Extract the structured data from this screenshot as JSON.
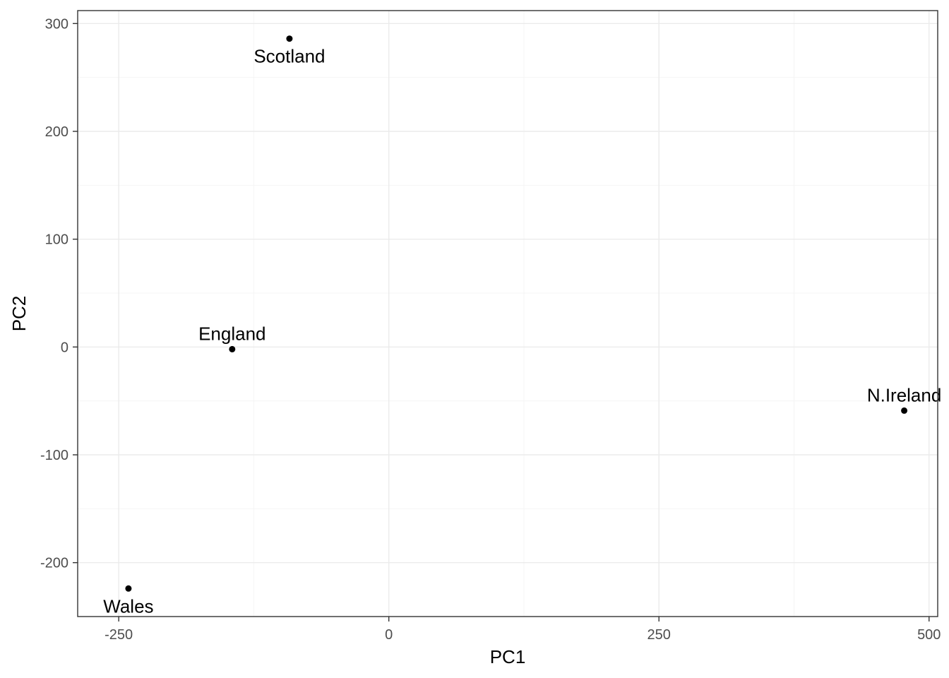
{
  "chart_data": {
    "type": "scatter",
    "title": "",
    "xlabel": "PC1",
    "ylabel": "PC2",
    "xlim": [
      -288,
      508
    ],
    "ylim": [
      -250,
      312
    ],
    "xticks": [
      -250,
      0,
      250,
      500
    ],
    "yticks": [
      -200,
      -100,
      0,
      100,
      200,
      300
    ],
    "xtick_labels": [
      "-250",
      "0",
      "250",
      "500"
    ],
    "ytick_labels": [
      "-200",
      "-100",
      "0",
      "100",
      "200",
      "300"
    ],
    "grid": true,
    "points": [
      {
        "label": "England",
        "x": -145,
        "y": -2,
        "label_position": "above"
      },
      {
        "label": "Wales",
        "x": -241,
        "y": -224,
        "label_position": "below"
      },
      {
        "label": "Scotland",
        "x": -92,
        "y": 286,
        "label_position": "below"
      },
      {
        "label": "N.Ireland",
        "x": 477,
        "y": -59,
        "label_position": "above"
      }
    ],
    "colors": {
      "points": "#000000",
      "grid": "#ebebeb",
      "border": "#333333"
    }
  }
}
